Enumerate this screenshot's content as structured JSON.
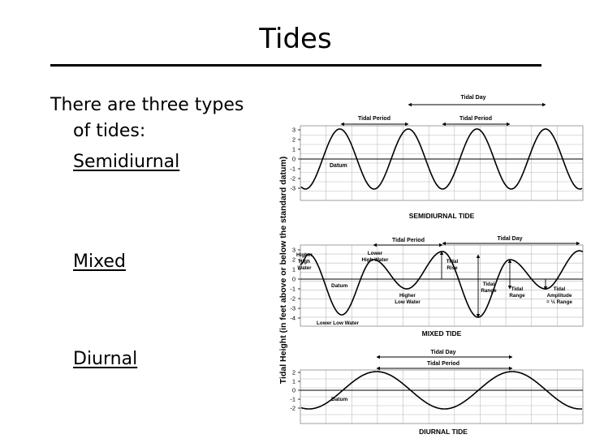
{
  "slide": {
    "title": "Tides",
    "intro_line1": "There are three types",
    "intro_line2": "of tides:",
    "types": [
      "Semidiurnal",
      "Mixed",
      "Diurnal"
    ]
  },
  "figure": {
    "yaxis_label": "Tidal Height (in feet above or below the standard datum)",
    "panels": [
      {
        "name": "SEMIDIURNAL TIDE",
        "ticks": [
          "3",
          "2",
          "1",
          "0",
          "-1",
          "-2",
          "-3"
        ],
        "labels": {
          "tidal_day": "Tidal Day",
          "tidal_period_1": "Tidal Period",
          "tidal_period_2": "Tidal Period",
          "datum": "Datum"
        }
      },
      {
        "name": "MIXED TIDE",
        "ticks": [
          "3",
          "2",
          "1",
          "0",
          "-1",
          "-2",
          "-3",
          "-4"
        ],
        "labels": {
          "tidal_period": "Tidal Period",
          "tidal_day": "Tidal Day",
          "higher_high_water": [
            "Higher",
            "High",
            "Water"
          ],
          "lower_high_water": [
            "Lower",
            "High Water"
          ],
          "tidal_rise": [
            "Tidal",
            "Rise"
          ],
          "tidal_range_1": [
            "Tidal",
            "Range"
          ],
          "tidal_range_2": [
            "Tidal",
            "Range"
          ],
          "tidal_amplitude": [
            "Tidal",
            "Amplitude",
            "= ½ Range"
          ],
          "higher_low_water": [
            "Higher",
            "Low Water"
          ],
          "lower_low_water": "Lower Low Water",
          "datum": "Datum"
        }
      },
      {
        "name": "DIURNAL TIDE",
        "ticks": [
          "2",
          "1",
          "0",
          "-1",
          "-2"
        ],
        "labels": {
          "tidal_day": "Tidal Day",
          "tidal_period": "Tidal Period",
          "datum": "Datum"
        }
      }
    ]
  }
}
